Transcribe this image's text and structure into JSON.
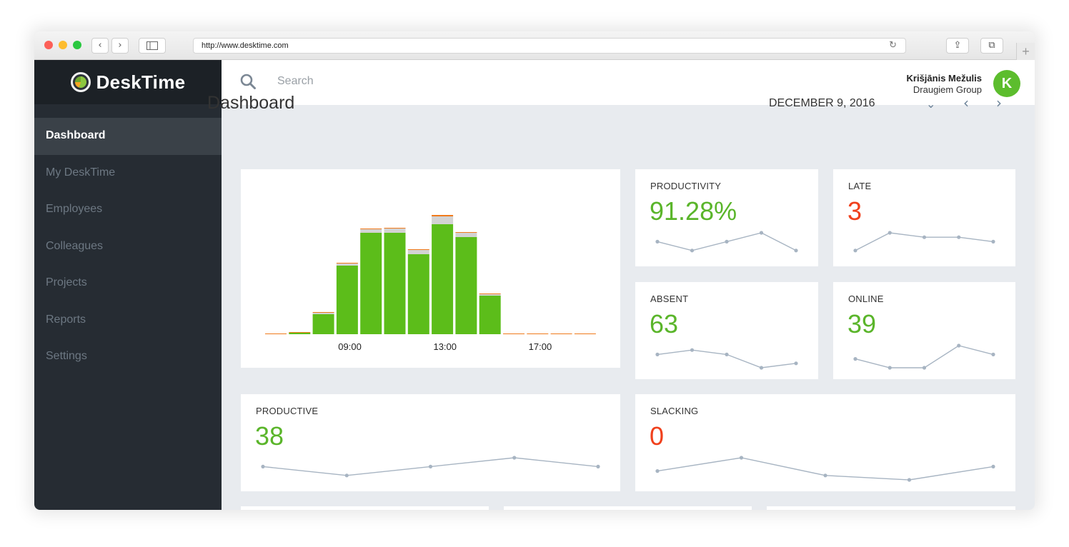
{
  "browser": {
    "url": "http://www.desktime.com",
    "back_glyph": "‹",
    "forward_glyph": "›",
    "reload_glyph": "↻",
    "share_glyph": "⇪",
    "tabs_glyph": "⧉",
    "plus_glyph": "+"
  },
  "app": {
    "logo_text": "DeskTime"
  },
  "sidebar": {
    "items": [
      {
        "label": "Dashboard",
        "active": true
      },
      {
        "label": "My DeskTime"
      },
      {
        "label": "Employees"
      },
      {
        "label": "Colleagues"
      },
      {
        "label": "Projects"
      },
      {
        "label": "Reports"
      },
      {
        "label": "Settings"
      }
    ]
  },
  "header": {
    "search_placeholder": "Search",
    "user_name": "Krišjānis Mežulis",
    "user_company": "Draugiem Group",
    "avatar_initial": "K"
  },
  "page": {
    "title": "Dashboard",
    "date": "DECEMBER 9, 2016",
    "dropdown_glyph": "⌄",
    "prev_glyph": "‹",
    "next_glyph": "›"
  },
  "colors": {
    "green": "#5ab52a",
    "bar_green": "#5cbd1a",
    "gray": "#d3d3d3",
    "orange": "#f07a1c",
    "red": "#f0401c",
    "spark": "#a7b4c2"
  },
  "chart_data": {
    "type": "bar",
    "stacked": true,
    "x_tick_labels": [
      "09:00",
      "13:00",
      "17:00"
    ],
    "x_tick_positions": [
      4,
      8,
      12
    ],
    "bars": [
      {
        "productive": 0,
        "neutral": 0,
        "unproductive": 0.5
      },
      {
        "productive": 1,
        "neutral": 0,
        "unproductive": 0.5
      },
      {
        "productive": 14,
        "neutral": 1,
        "unproductive": 0.5
      },
      {
        "productive": 48,
        "neutral": 1.5,
        "unproductive": 0.5
      },
      {
        "productive": 71,
        "neutral": 2.5,
        "unproductive": 0.5
      },
      {
        "productive": 71,
        "neutral": 3,
        "unproductive": 0.5
      },
      {
        "productive": 56,
        "neutral": 3,
        "unproductive": 0.5
      },
      {
        "productive": 77,
        "neutral": 5.5,
        "unproductive": 1
      },
      {
        "productive": 68,
        "neutral": 3,
        "unproductive": 0.5
      },
      {
        "productive": 27,
        "neutral": 1,
        "unproductive": 0.5
      },
      {
        "productive": 0,
        "neutral": 0,
        "unproductive": 0.5
      },
      {
        "productive": 0,
        "neutral": 0,
        "unproductive": 0.5
      },
      {
        "productive": 0,
        "neutral": 0,
        "unproductive": 0.5
      },
      {
        "productive": 0,
        "neutral": 0,
        "unproductive": 0.5
      }
    ],
    "ylim": [
      0,
      100
    ]
  },
  "cards": {
    "productivity": {
      "label": "PRODUCTIVITY",
      "value": "91.28%",
      "trend": [
        3,
        1,
        3,
        5,
        1
      ]
    },
    "late": {
      "label": "LATE",
      "value": "3",
      "trend": [
        1,
        5,
        4,
        4,
        3
      ]
    },
    "absent": {
      "label": "ABSENT",
      "value": "63",
      "trend": [
        3,
        4,
        3,
        0,
        1
      ]
    },
    "online": {
      "label": "ONLINE",
      "value": "39",
      "trend": [
        2,
        0,
        0,
        5,
        3
      ]
    },
    "productive": {
      "label": "PRODUCTIVE",
      "value": "38",
      "trend": [
        3,
        1,
        3,
        5,
        3
      ]
    },
    "slacking": {
      "label": "SLACKING",
      "value": "0",
      "trend": [
        2,
        5,
        1,
        0,
        3
      ]
    }
  }
}
